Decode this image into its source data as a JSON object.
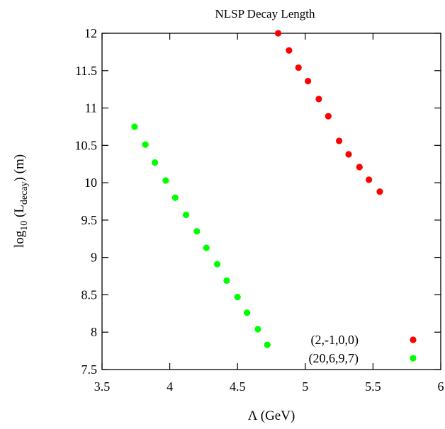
{
  "chart_data": {
    "type": "scatter",
    "title": "NLSP Decay Length",
    "xlabel": "Λ (GeV)",
    "ylabel": {
      "prefix": "log",
      "prefix_sub": "10",
      "middle": " (L",
      "middle_sub": "decay",
      "suffix": ") (m)"
    },
    "xlim": [
      3.5,
      6
    ],
    "ylim": [
      7.5,
      12
    ],
    "xticks": [
      "3.5",
      "4",
      "4.5",
      "5",
      "5.5",
      "6"
    ],
    "yticks": [
      "7.5",
      "8",
      "8.5",
      "9",
      "9.5",
      "10",
      "10.5",
      "11",
      "11.5",
      "12"
    ],
    "grid": false,
    "legend_position": "bottom-right",
    "series": [
      {
        "name": "(2,-1,0,0)",
        "color": "#ff0000",
        "points": [
          [
            4.8,
            12.0
          ],
          [
            4.88,
            11.77
          ],
          [
            4.95,
            11.54
          ],
          [
            5.02,
            11.36
          ],
          [
            5.1,
            11.12
          ],
          [
            5.17,
            10.89
          ],
          [
            5.25,
            10.56
          ],
          [
            5.32,
            10.38
          ],
          [
            5.4,
            10.21
          ],
          [
            5.47,
            10.04
          ],
          [
            5.55,
            9.88
          ]
        ]
      },
      {
        "name": "(20,6,9,7)",
        "color": "#00ff00",
        "points": [
          [
            3.74,
            10.75
          ],
          [
            3.82,
            10.51
          ],
          [
            3.89,
            10.27
          ],
          [
            3.97,
            10.03
          ],
          [
            4.04,
            9.8
          ],
          [
            4.12,
            9.57
          ],
          [
            4.2,
            9.35
          ],
          [
            4.27,
            9.13
          ],
          [
            4.35,
            8.91
          ],
          [
            4.42,
            8.69
          ],
          [
            4.5,
            8.47
          ],
          [
            4.57,
            8.26
          ],
          [
            4.65,
            8.04
          ],
          [
            4.72,
            7.83
          ]
        ]
      }
    ]
  }
}
